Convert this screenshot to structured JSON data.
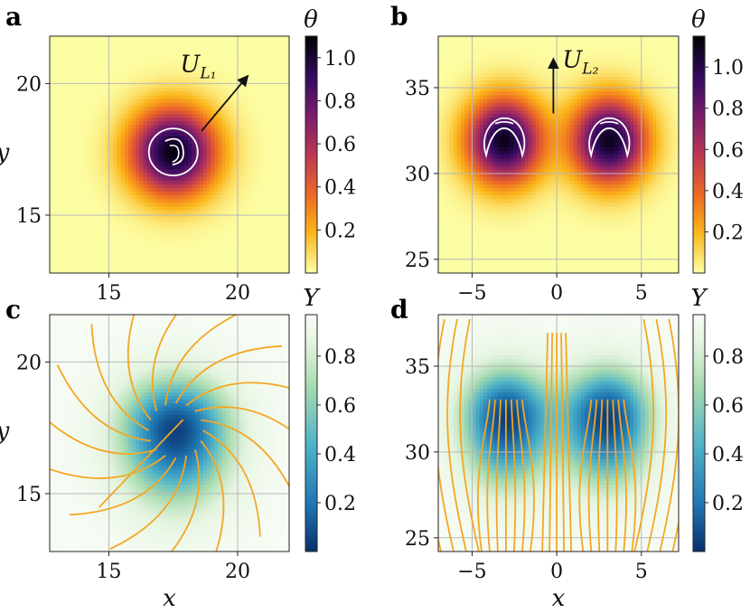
{
  "colors": {
    "streamline": "#F5A623",
    "gridline": "#b8b8b8",
    "contour": "#ffffff",
    "theta_cmap": [
      "#fcfea4",
      "#fbb61a",
      "#ed6925",
      "#bc3754",
      "#781c6d",
      "#320a5e",
      "#000004"
    ],
    "Y_cmap": [
      "#08306b",
      "#1f77b4",
      "#4fb3c8",
      "#a8dbb0",
      "#e4f4df",
      "#f7fcf5"
    ]
  },
  "chart_data": [
    {
      "panel": "a",
      "type": "heatmap",
      "field": "theta",
      "xlim": [
        12.7,
        22.0
      ],
      "ylim": [
        12.8,
        21.8
      ],
      "xticks": [
        15,
        20
      ],
      "yticks": [
        15,
        20
      ],
      "xticklabels": [
        "15",
        "20"
      ],
      "yticklabels": [
        "15",
        "20"
      ],
      "xlabel": "",
      "ylabel": "y",
      "grid": true,
      "blobs": [
        {
          "cx": 17.5,
          "cy": 17.4,
          "amp": 1.08,
          "sx": 1.2,
          "sy": 1.2
        }
      ],
      "arrow": {
        "from": [
          18.6,
          18.2
        ],
        "to": [
          20.4,
          20.3
        ],
        "label": "U",
        "label_sub": "L₁"
      },
      "colorbar": {
        "label": "θ",
        "vmin": 0.0,
        "vmax": 1.1,
        "ticks": [
          0.2,
          0.4,
          0.6,
          0.8,
          1.0
        ],
        "ticklabels": [
          "0.2",
          "0.4",
          "0.6",
          "0.8",
          "1.0"
        ]
      }
    },
    {
      "panel": "b",
      "type": "heatmap",
      "field": "theta",
      "xlim": [
        -7.0,
        7.2
      ],
      "ylim": [
        24.2,
        38.0
      ],
      "xticks": [
        -5,
        0,
        5
      ],
      "yticks": [
        25,
        30,
        35
      ],
      "xticklabels": [
        "−5",
        "0",
        "5"
      ],
      "yticklabels": [
        "25",
        "30",
        "35"
      ],
      "xlabel": "",
      "ylabel": "",
      "grid": true,
      "blobs": [
        {
          "cx": -3.1,
          "cy": 31.9,
          "amp": 1.1,
          "sx": 1.6,
          "sy": 1.8
        },
        {
          "cx": 3.1,
          "cy": 31.9,
          "amp": 1.1,
          "sx": 1.6,
          "sy": 1.8
        }
      ],
      "arrow": {
        "from": [
          -0.2,
          33.5
        ],
        "to": [
          -0.2,
          36.7
        ],
        "label": "U",
        "label_sub": "L₂"
      },
      "colorbar": {
        "label": "θ",
        "vmin": 0.0,
        "vmax": 1.15,
        "ticks": [
          0.2,
          0.4,
          0.6,
          0.8,
          1.0
        ],
        "ticklabels": [
          "0.2",
          "0.4",
          "0.6",
          "0.8",
          "1.0"
        ]
      }
    },
    {
      "panel": "c",
      "type": "heatmap",
      "field": "Y",
      "xlim": [
        12.7,
        22.0
      ],
      "ylim": [
        12.8,
        21.8
      ],
      "xticks": [
        15,
        20
      ],
      "yticks": [
        15,
        20
      ],
      "xticklabels": [
        "15",
        "20"
      ],
      "yticklabels": [
        "15",
        "20"
      ],
      "xlabel": "x",
      "ylabel": "y",
      "grid": true,
      "blobs": [
        {
          "cx": 17.6,
          "cy": 17.4,
          "amp": 0.95,
          "sx": 1.5,
          "sy": 1.4
        }
      ],
      "colorbar": {
        "label": "Y",
        "vmin": 0.0,
        "vmax": 0.97,
        "ticks": [
          0.2,
          0.4,
          0.6,
          0.8
        ],
        "ticklabels": [
          "0.2",
          "0.4",
          "0.6",
          "0.8"
        ]
      }
    },
    {
      "panel": "d",
      "type": "heatmap",
      "field": "Y",
      "xlim": [
        -7.0,
        7.2
      ],
      "ylim": [
        24.2,
        38.0
      ],
      "xticks": [
        -5,
        0,
        5
      ],
      "yticks": [
        25,
        30,
        35
      ],
      "xticklabels": [
        "−5",
        "0",
        "5"
      ],
      "yticklabels": [
        "25",
        "30",
        "35"
      ],
      "xlabel": "x",
      "ylabel": "",
      "grid": true,
      "blobs": [
        {
          "cx": -3.0,
          "cy": 32.0,
          "amp": 0.95,
          "sx": 1.8,
          "sy": 2.0
        },
        {
          "cx": 3.0,
          "cy": 32.0,
          "amp": 0.95,
          "sx": 1.8,
          "sy": 2.0
        }
      ],
      "colorbar": {
        "label": "Y",
        "vmin": 0.0,
        "vmax": 0.97,
        "ticks": [
          0.2,
          0.4,
          0.6,
          0.8
        ],
        "ticklabels": [
          "0.2",
          "0.4",
          "0.6",
          "0.8"
        ]
      }
    }
  ]
}
